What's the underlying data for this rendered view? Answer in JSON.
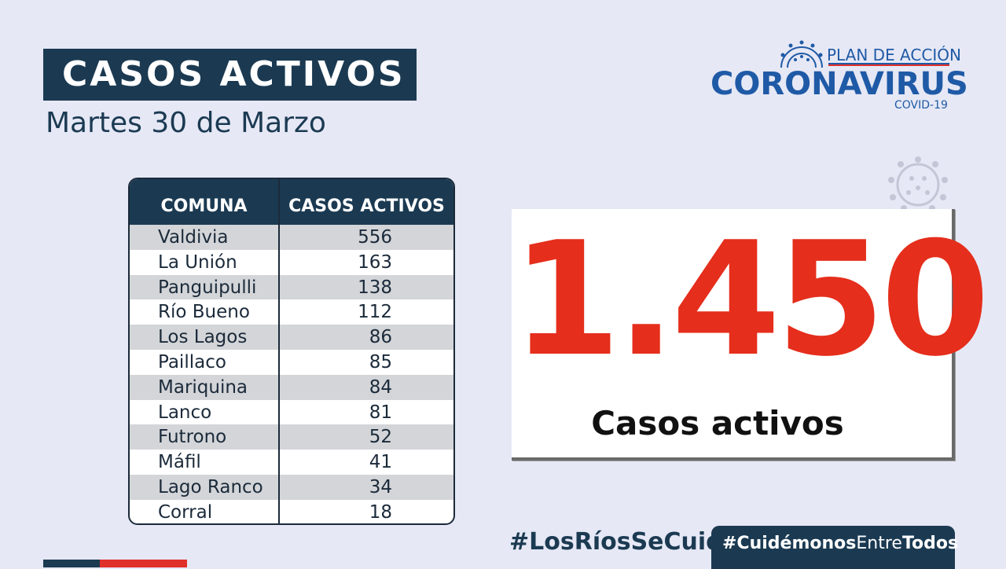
{
  "header": {
    "title": "CASOS ACTIVOS",
    "date": "Martes 30 de Marzo"
  },
  "logo": {
    "plan": "PLAN DE ACCIÓN",
    "brand": "CORONAVIRUS",
    "sub": "COVID-19",
    "icon": "virus-icon"
  },
  "table": {
    "headers": [
      "COMUNA",
      "CASOS ACTIVOS"
    ],
    "rows": [
      {
        "comuna": "Valdivia",
        "casos": "556"
      },
      {
        "comuna": "La Unión",
        "casos": "163"
      },
      {
        "comuna": "Panguipulli",
        "casos": "138"
      },
      {
        "comuna": "Río Bueno",
        "casos": "112"
      },
      {
        "comuna": "Los Lagos",
        "casos": "86"
      },
      {
        "comuna": "Paillaco",
        "casos": "85"
      },
      {
        "comuna": "Mariquina",
        "casos": "84"
      },
      {
        "comuna": "Lanco",
        "casos": "81"
      },
      {
        "comuna": "Futrono",
        "casos": "52"
      },
      {
        "comuna": "Máfil",
        "casos": "41"
      },
      {
        "comuna": "Lago Ranco",
        "casos": "34"
      },
      {
        "comuna": "Corral",
        "casos": "18"
      }
    ]
  },
  "total": {
    "value": "1.450",
    "label": "Casos activos"
  },
  "footer": {
    "hashtag1": "#LosRíosSeCuida",
    "hashtag2_a": "#Cuidémonos",
    "hashtag2_b": "Entre",
    "hashtag2_c": "Todos"
  },
  "colors": {
    "navy": "#1b3a52",
    "red": "#e52e1c",
    "blue": "#1f5aa6",
    "background": "#e6e8f5"
  }
}
